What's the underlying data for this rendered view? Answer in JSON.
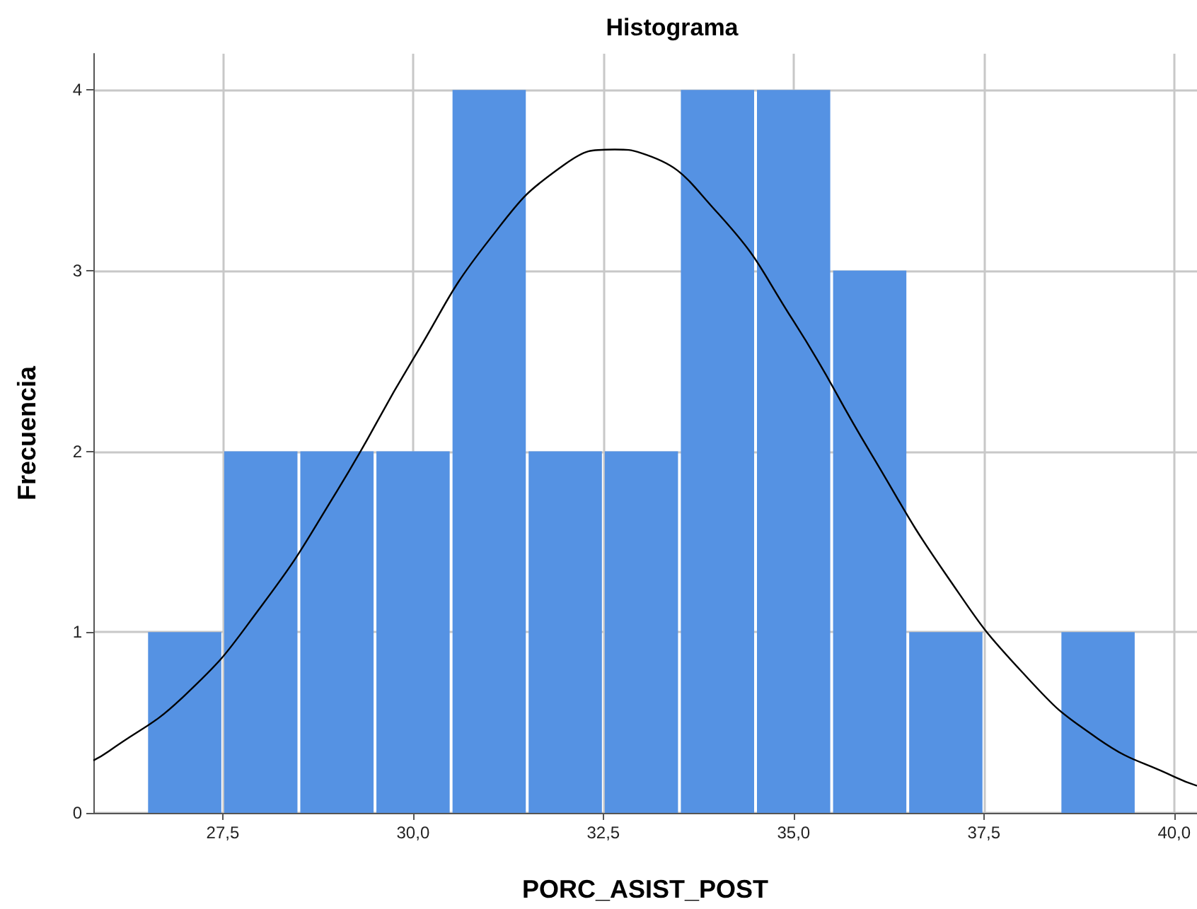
{
  "chart_data": {
    "type": "histogram",
    "title": "Histograma",
    "xlabel": "PORC_ASIST_POST",
    "ylabel": "Frecuencia",
    "bins": [
      26.5,
      27.5,
      28.5,
      29.5,
      30.5,
      31.5,
      32.5,
      33.5,
      34.5,
      35.5,
      36.5,
      37.5,
      38.5,
      39.5
    ],
    "values": [
      1,
      2,
      2,
      2,
      4,
      2,
      2,
      4,
      4,
      3,
      1,
      0,
      1
    ],
    "color": "#5592e3",
    "series": [
      {
        "type": "line",
        "color": "#000000",
        "x": [
          25.8,
          26,
          27,
          28,
          29,
          30,
          31,
          32,
          32.65,
          33,
          34,
          35,
          36,
          37,
          38,
          39,
          40,
          40.3
        ],
        "values": [
          0.29,
          0.34,
          0.65,
          1.14,
          1.78,
          2.51,
          3.17,
          3.59,
          3.67,
          3.65,
          3.32,
          2.72,
          2.0,
          1.32,
          0.78,
          0.41,
          0.2,
          0.15
        ]
      }
    ],
    "marker": "none",
    "xlim": [
      25.8,
      40.3
    ],
    "xticks": [
      {
        "value": 27.5,
        "label": "27,5"
      },
      {
        "value": 30,
        "label": "30,0"
      },
      {
        "value": 32.5,
        "label": "32,5"
      },
      {
        "value": 35,
        "label": "35,0"
      },
      {
        "value": 37.5,
        "label": "37,5"
      },
      {
        "value": 40,
        "label": "40,0"
      }
    ],
    "ylim": [
      0,
      4.2
    ],
    "yticks": [
      0,
      1,
      2,
      3,
      4
    ],
    "grid": true
  }
}
